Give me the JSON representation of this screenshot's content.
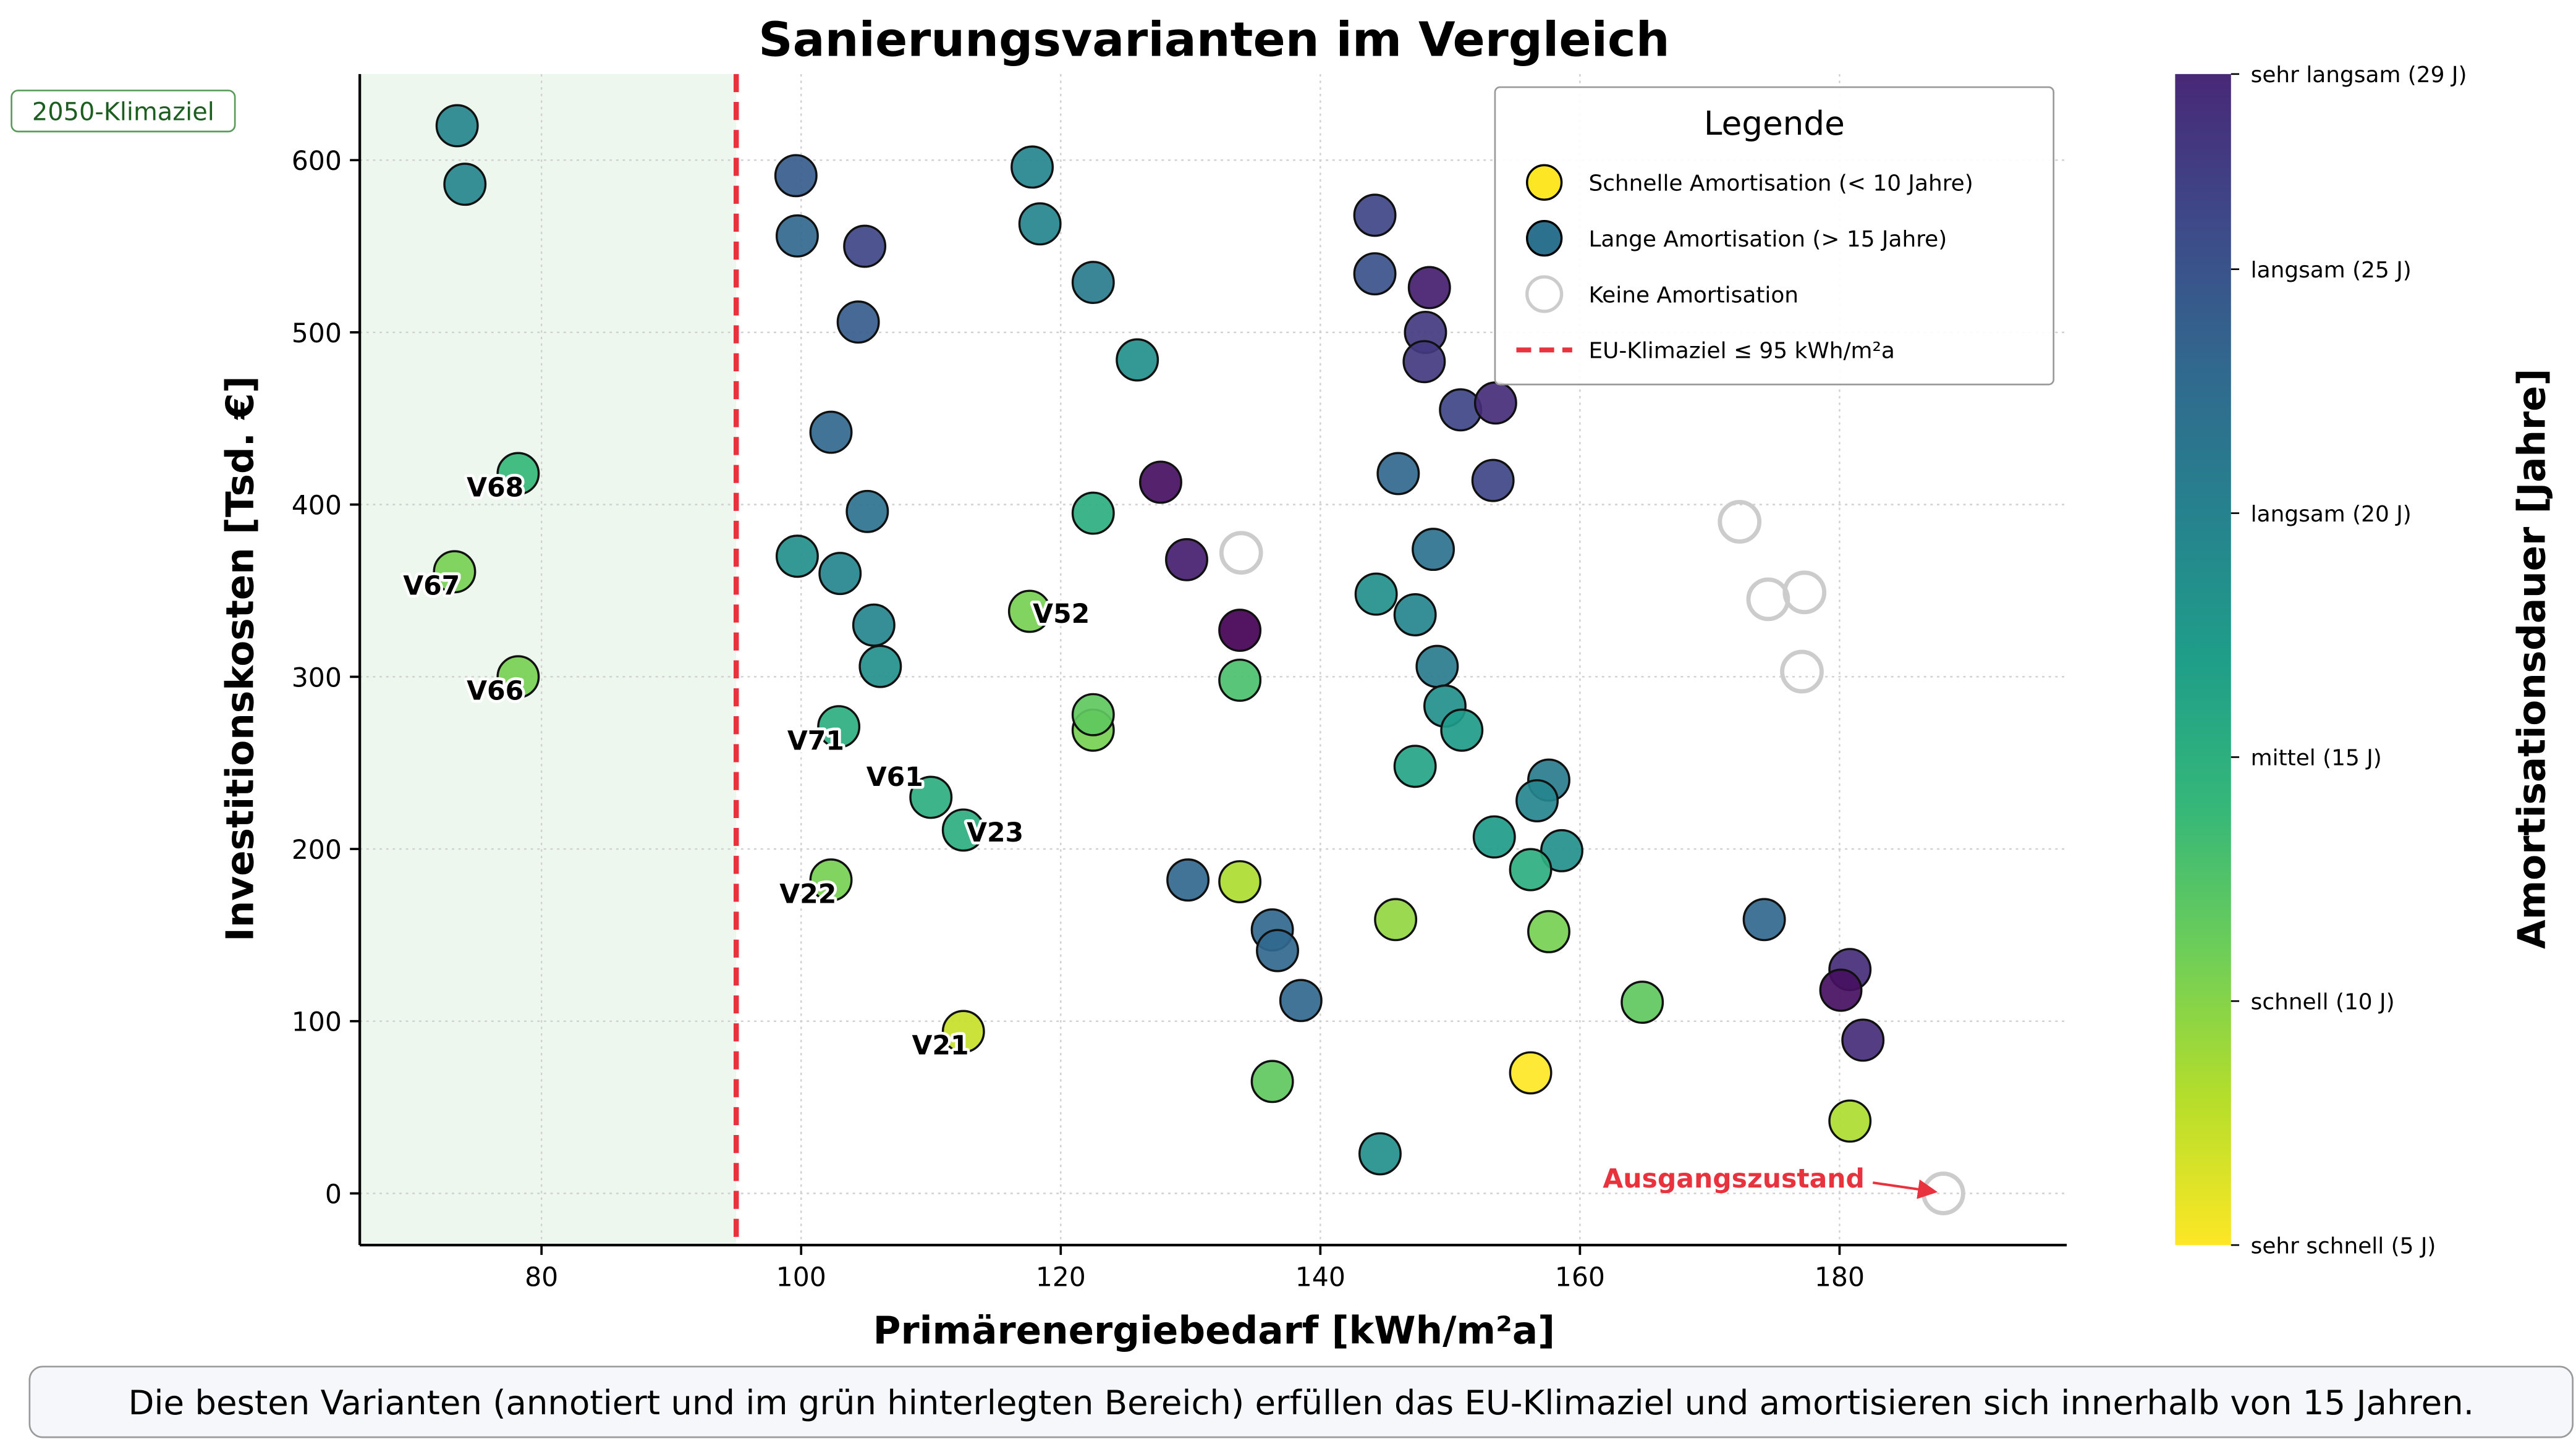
{
  "chart_data": {
    "type": "scatter",
    "title": "Sanierungsvarianten im Vergleich",
    "xlabel": "Primärenergiebedarf [kWh/m²a]",
    "ylabel": "Investitionskosten [Tsd. €]",
    "xlim": [
      66,
      197.5
    ],
    "ylim": [
      -30,
      650
    ],
    "xticks": [
      80,
      100,
      120,
      140,
      160,
      180
    ],
    "yticks": [
      0,
      100,
      200,
      300,
      400,
      500,
      600
    ],
    "grid": true,
    "colormap": "viridis_r",
    "colorbar": {
      "label": "Amortisationsdauer [Jahre]",
      "range": [
        5,
        29
      ],
      "ticks": [
        {
          "value": 29,
          "label": "sehr langsam (29 J)"
        },
        {
          "value": 25,
          "label": "langsam (25 J)"
        },
        {
          "value": 20,
          "label": "langsam (20 J)"
        },
        {
          "value": 15,
          "label": "mittel (15 J)"
        },
        {
          "value": 10,
          "label": "schnell (10 J)"
        },
        {
          "value": 5,
          "label": "sehr schnell (5 J)"
        }
      ]
    },
    "climate_target": {
      "x": 95,
      "color": "#e8333f",
      "zone_label": "2050-Klimaziel",
      "zone_color": "#eef7ee"
    },
    "legend": {
      "title": "Legende",
      "position": "top-right",
      "items": [
        {
          "label": "Schnelle Amortisation (< 10 Jahre)",
          "marker": "filled",
          "color": "#fde725"
        },
        {
          "label": "Lange Amortisation (> 15 Jahre)",
          "marker": "filled",
          "color": "#2c728e"
        },
        {
          "label": "Keine Amortisation",
          "marker": "hollow",
          "color": "#cccccc"
        },
        {
          "label": "EU-Klimaziel ≤ 95 kWh/m²a",
          "marker": "dashed-line",
          "color": "#e8333f"
        }
      ]
    },
    "points": [
      {
        "x": 73.5,
        "y": 620,
        "years": 18
      },
      {
        "x": 74.1,
        "y": 586,
        "years": 18
      },
      {
        "x": 78.2,
        "y": 418,
        "years": 13,
        "label": "V68",
        "label_pos": "left-below"
      },
      {
        "x": 73.3,
        "y": 361,
        "years": 10,
        "label": "V67",
        "label_pos": "left-below"
      },
      {
        "x": 78.2,
        "y": 300,
        "years": 10,
        "label": "V66",
        "label_pos": "left-below"
      },
      {
        "x": 99.6,
        "y": 591,
        "years": 22
      },
      {
        "x": 99.7,
        "y": 556,
        "years": 21
      },
      {
        "x": 104.9,
        "y": 550,
        "years": 24
      },
      {
        "x": 104.4,
        "y": 506,
        "years": 22
      },
      {
        "x": 102.3,
        "y": 442,
        "years": 21
      },
      {
        "x": 105.1,
        "y": 396,
        "years": 20
      },
      {
        "x": 99.7,
        "y": 370,
        "years": 17
      },
      {
        "x": 103.0,
        "y": 360,
        "years": 18
      },
      {
        "x": 105.6,
        "y": 330,
        "years": 18
      },
      {
        "x": 106.1,
        "y": 306,
        "years": 17
      },
      {
        "x": 102.9,
        "y": 271,
        "years": 14,
        "label": "V71",
        "label_pos": "left-below"
      },
      {
        "x": 110.0,
        "y": 230,
        "years": 14,
        "label": "V61",
        "label_pos": "left-above"
      },
      {
        "x": 112.5,
        "y": 211,
        "years": 14,
        "label": "V23",
        "label_pos": "right"
      },
      {
        "x": 102.3,
        "y": 182,
        "years": 10,
        "label": "V22",
        "label_pos": "left-below"
      },
      {
        "x": 112.5,
        "y": 94,
        "years": 7,
        "label": "V21",
        "label_pos": "left-below"
      },
      {
        "x": 117.6,
        "y": 338,
        "years": 10,
        "label": "V52",
        "label_pos": "right"
      },
      {
        "x": 117.8,
        "y": 596,
        "years": 18
      },
      {
        "x": 118.4,
        "y": 563,
        "years": 18
      },
      {
        "x": 122.5,
        "y": 529,
        "years": 19
      },
      {
        "x": 125.9,
        "y": 484,
        "years": 17
      },
      {
        "x": 122.5,
        "y": 395,
        "years": 14
      },
      {
        "x": 122.5,
        "y": 269,
        "years": 10
      },
      {
        "x": 122.5,
        "y": 278,
        "years": 11
      },
      {
        "x": 127.7,
        "y": 413,
        "years": 28
      },
      {
        "x": 129.7,
        "y": 368,
        "years": 27
      },
      {
        "x": 133.8,
        "y": 327,
        "years": 29
      },
      {
        "x": 133.8,
        "y": 298,
        "years": 12
      },
      {
        "x": 129.8,
        "y": 182,
        "years": 21
      },
      {
        "x": 133.8,
        "y": 181,
        "years": 8
      },
      {
        "x": 136.3,
        "y": 153,
        "years": 21
      },
      {
        "x": 136.7,
        "y": 141,
        "years": 21
      },
      {
        "x": 138.5,
        "y": 112,
        "years": 21
      },
      {
        "x": 136.3,
        "y": 65,
        "years": 11
      },
      {
        "x": 144.2,
        "y": 568,
        "years": 24
      },
      {
        "x": 144.2,
        "y": 534,
        "years": 23
      },
      {
        "x": 148.4,
        "y": 526,
        "years": 27
      },
      {
        "x": 148.1,
        "y": 500,
        "years": 25
      },
      {
        "x": 148.0,
        "y": 483,
        "years": 25
      },
      {
        "x": 150.8,
        "y": 455,
        "years": 24
      },
      {
        "x": 153.5,
        "y": 459,
        "years": 26
      },
      {
        "x": 146.0,
        "y": 418,
        "years": 21
      },
      {
        "x": 153.3,
        "y": 414,
        "years": 24
      },
      {
        "x": 148.7,
        "y": 374,
        "years": 20
      },
      {
        "x": 144.3,
        "y": 348,
        "years": 17
      },
      {
        "x": 147.3,
        "y": 336,
        "years": 18
      },
      {
        "x": 149.0,
        "y": 306,
        "years": 19
      },
      {
        "x": 149.6,
        "y": 283,
        "years": 17
      },
      {
        "x": 150.9,
        "y": 269,
        "years": 16
      },
      {
        "x": 147.3,
        "y": 248,
        "years": 15
      },
      {
        "x": 157.6,
        "y": 240,
        "years": 19
      },
      {
        "x": 156.7,
        "y": 228,
        "years": 18
      },
      {
        "x": 153.4,
        "y": 207,
        "years": 16
      },
      {
        "x": 158.6,
        "y": 199,
        "years": 17
      },
      {
        "x": 156.2,
        "y": 188,
        "years": 14
      },
      {
        "x": 145.8,
        "y": 159,
        "years": 9
      },
      {
        "x": 157.6,
        "y": 152,
        "years": 10
      },
      {
        "x": 156.2,
        "y": 70,
        "years": 5
      },
      {
        "x": 144.6,
        "y": 23,
        "years": 17
      },
      {
        "x": 164.8,
        "y": 111,
        "years": 11
      },
      {
        "x": 174.2,
        "y": 159,
        "years": 21
      },
      {
        "x": 180.8,
        "y": 130,
        "years": 26
      },
      {
        "x": 180.1,
        "y": 118,
        "years": 28
      },
      {
        "x": 181.8,
        "y": 89,
        "years": 26
      },
      {
        "x": 180.8,
        "y": 42,
        "years": 8
      },
      {
        "x": 133.9,
        "y": 372,
        "years": null
      },
      {
        "x": 172.3,
        "y": 390,
        "years": null
      },
      {
        "x": 174.5,
        "y": 345,
        "years": null
      },
      {
        "x": 177.3,
        "y": 349,
        "years": null
      },
      {
        "x": 177.1,
        "y": 303,
        "years": null
      },
      {
        "x": 188.0,
        "y": 0,
        "years": null
      }
    ],
    "annotations": [
      {
        "text": "Ausgangszustand",
        "x": 188.0,
        "y": 0,
        "color": "#e8333f"
      }
    ]
  },
  "caption": "Die besten Varianten (annotiert und im grün hinterlegten Bereich) erfüllen das EU-Klimaziel und amortisieren sich innerhalb von 15 Jahren."
}
